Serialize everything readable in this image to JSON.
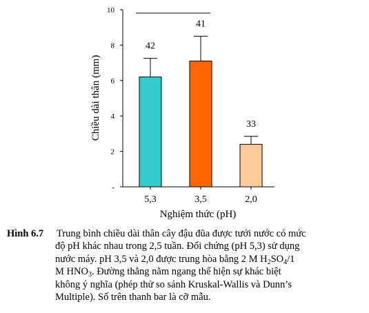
{
  "chart_data": {
    "type": "bar",
    "categories": [
      "5,3",
      "3,5",
      "2,0"
    ],
    "values": [
      6.2,
      7.1,
      2.4
    ],
    "error_upper": [
      7.25,
      8.5,
      2.85
    ],
    "sample_sizes": [
      "42",
      "41",
      "33"
    ],
    "bar_colors": [
      "#33CCCC",
      "#FF6600",
      "#FFCC99"
    ],
    "xlabel": "Nghiệm thức (pH)",
    "ylabel": "Chiều dài thân (mm)",
    "ylim": [
      0,
      10
    ],
    "yticks": [
      "-",
      "2",
      "4",
      "6",
      "8",
      "10"
    ],
    "ytick_values": [
      0,
      2,
      4,
      6,
      8,
      10
    ],
    "no_difference_line": {
      "from_category": 0,
      "to_category": 1,
      "y": 10
    },
    "grid": false,
    "legend": "none"
  },
  "caption": {
    "label": "Hình 6.7",
    "lines": [
      "Trung bình chiều dài thân cây đậu đũa được tưới nước có mức",
      "độ pH khác nhau trong 2,5 tuần. Đối chứng (pH 5,3) sử dụng",
      "nước máy. pH 3,5 và 2,0 được trung hòa bằng 2 M H",
      "SO",
      "/1",
      "M HNO",
      ". Đường thẳng nằm ngang thể hiện sự khác biệt",
      "không ý nghĩa (phép thử so sánh Kruskal-Wallis và Dunn’s",
      "Multiple). Số trên thanh bar là cỡ mẫu."
    ],
    "sub_2": "2",
    "sub_4": "4",
    "sub_3": "3"
  }
}
